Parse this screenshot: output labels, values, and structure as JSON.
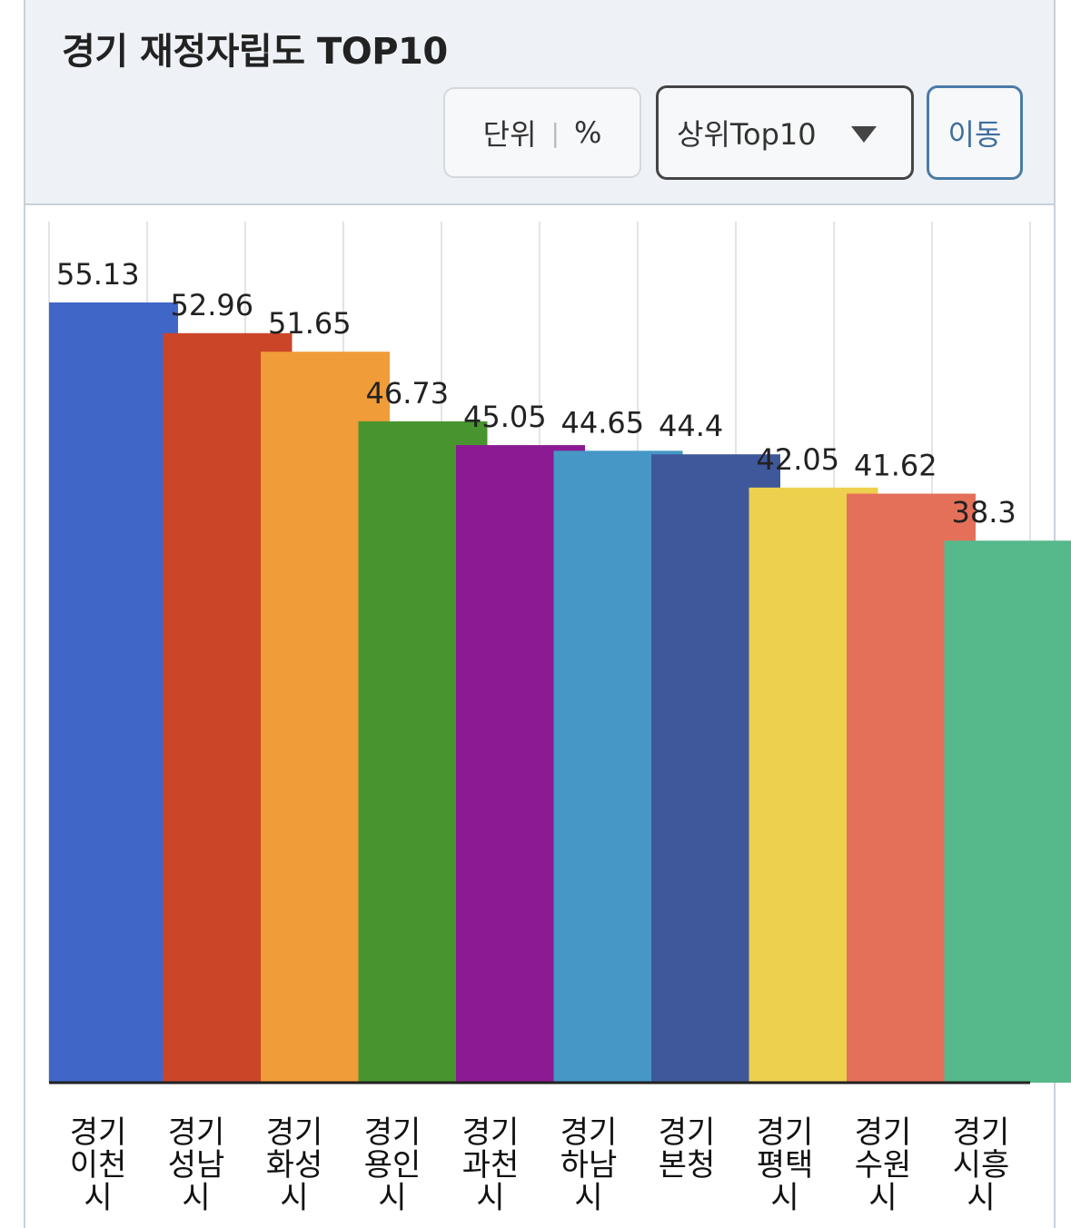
{
  "header": {
    "title": "경기 재정자립도 TOP10",
    "unit_label": "단위",
    "unit_value": "%",
    "select_value": "상위Top10",
    "go_label": "이동"
  },
  "colors": {
    "header_bg": "#eef2f6",
    "go_button": "#4a7ba7"
  },
  "chart_data": {
    "type": "bar",
    "title": "경기 재정자립도 TOP10",
    "unit": "%",
    "categories": [
      [
        "경기",
        "이천",
        "시"
      ],
      [
        "경기",
        "성남",
        "시"
      ],
      [
        "경기",
        "화성",
        "시"
      ],
      [
        "경기",
        "용인",
        "시"
      ],
      [
        "경기",
        "과천",
        "시"
      ],
      [
        "경기",
        "하남",
        "시"
      ],
      [
        "경기",
        "본청"
      ],
      [
        "경기",
        "평택",
        "시"
      ],
      [
        "경기",
        "수원",
        "시"
      ],
      [
        "경기",
        "시흥",
        "시"
      ]
    ],
    "values": [
      55.13,
      52.96,
      51.65,
      46.73,
      45.05,
      44.65,
      44.4,
      42.05,
      41.62,
      38.3
    ],
    "value_labels": [
      "55.13",
      "52.96",
      "51.65",
      "46.73",
      "45.05",
      "44.65",
      "44.4",
      "42.05",
      "41.62",
      "38.3"
    ],
    "colors": [
      "#4066c8",
      "#cb4528",
      "#f09c38",
      "#48942f",
      "#8b1a93",
      "#4697c6",
      "#3f589b",
      "#eed04f",
      "#e5705a",
      "#56b98b"
    ],
    "ylim": [
      0,
      60
    ],
    "grid": "vertical",
    "legend": "none"
  }
}
